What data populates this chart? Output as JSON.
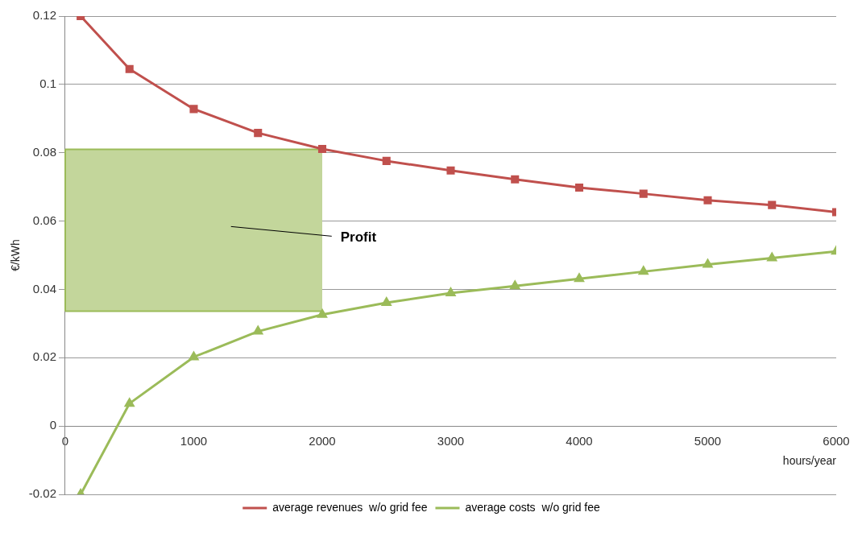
{
  "chart_data": {
    "type": "line",
    "xlabel": "hours/year",
    "ylabel": "€/kWh",
    "xlim": [
      0,
      6000
    ],
    "xticks": [
      0,
      1000,
      2000,
      3000,
      4000,
      5000,
      6000
    ],
    "ylim": [
      -0.02,
      0.12
    ],
    "yticks": [
      -0.02,
      0,
      0.02,
      0.04,
      0.06,
      0.08,
      0.1,
      0.12
    ],
    "grid": "y",
    "legend": "bottom",
    "series": [
      {
        "type": "line",
        "color": "#9bbb59",
        "marker": "none",
        "x": [
          0,
          2000
        ],
        "values": [
          0.0336,
          0.0336
        ]
      },
      {
        "type": "area",
        "color": "#c3d69b",
        "x": [
          0,
          2000
        ],
        "values": [
          0.081,
          0.081
        ]
      },
      {
        "name": "average revenues  w/o grid fee",
        "color": "#c0504d",
        "marker": "square",
        "x": [
          120,
          500,
          1000,
          1500,
          2000,
          2500,
          3000,
          3500,
          4000,
          4500,
          5000,
          5500,
          6000
        ],
        "values": [
          0.12,
          0.1045,
          0.0928,
          0.0858,
          0.0811,
          0.0776,
          0.0748,
          0.0722,
          0.0698,
          0.068,
          0.0661,
          0.0647,
          0.0626
        ]
      },
      {
        "name": "average costs  w/o grid fee",
        "color": "#9bbb59",
        "marker": "triangle",
        "x": [
          120,
          500,
          1000,
          1500,
          2000,
          2500,
          3000,
          3500,
          4000,
          4500,
          5000,
          5500,
          6000
        ],
        "values": [
          -0.02,
          0.0066,
          0.0202,
          0.0277,
          0.0326,
          0.0361,
          0.0389,
          0.041,
          0.0431,
          0.0452,
          0.0473,
          0.0492,
          0.0511
        ]
      }
    ],
    "annotations": [
      "Profit"
    ]
  }
}
